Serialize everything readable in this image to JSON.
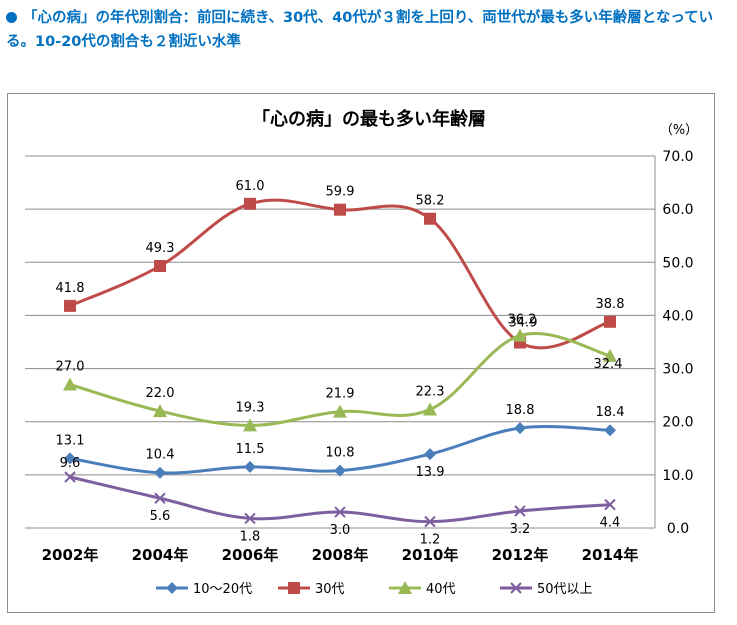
{
  "headline": "「心の病」の年代別割合：前回に続き、30代、40代が３割を上回り、両世代が最も多い年齢層となっている。10-20代の割合も２割近い水準",
  "chart_data": {
    "type": "line",
    "title": "「心の病」の最も多い年齢層",
    "y_unit": "（%）",
    "x": [
      "2002年",
      "2004年",
      "2006年",
      "2008年",
      "2010年",
      "2012年",
      "2014年"
    ],
    "y_ticks": [
      "70.0",
      "60.0",
      "50.0",
      "40.0",
      "30.0",
      "20.0",
      "10.0",
      "0.0"
    ],
    "ylim": [
      0,
      70
    ],
    "y_axis_position": "right",
    "grid": true,
    "legend_position": "bottom",
    "series": [
      {
        "name": "10～20代",
        "values": [
          13.1,
          10.4,
          11.5,
          10.8,
          13.9,
          18.8,
          18.4
        ],
        "color": "#4a7ebb",
        "marker": "diamond"
      },
      {
        "name": "30代",
        "values": [
          41.8,
          49.3,
          61.0,
          59.9,
          58.2,
          34.9,
          38.8
        ],
        "color": "#be4b48",
        "marker": "square"
      },
      {
        "name": "40代",
        "values": [
          27.0,
          22.0,
          19.3,
          21.9,
          22.3,
          36.2,
          32.4
        ],
        "color": "#98b954",
        "marker": "triangle"
      },
      {
        "name": "50代以上",
        "values": [
          9.6,
          5.6,
          1.8,
          3.0,
          1.2,
          3.2,
          4.4
        ],
        "color": "#7d5fa0",
        "marker": "x"
      }
    ]
  }
}
